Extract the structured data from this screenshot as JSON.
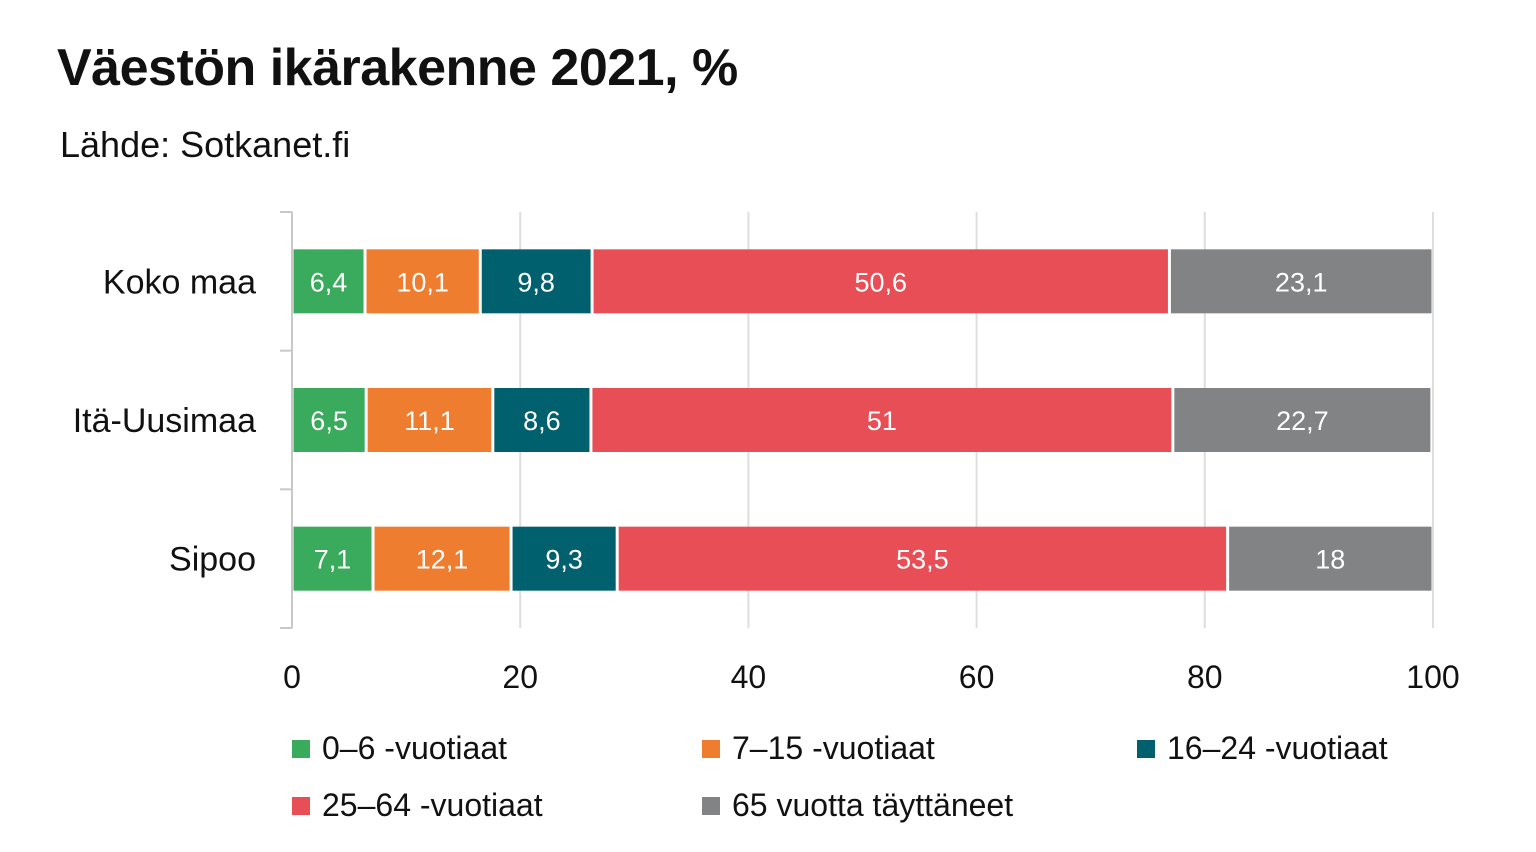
{
  "title": "Väestön ikärakenne 2021, %",
  "subtitle": "Lähde: Sotkanet.fi",
  "chart_data": {
    "type": "bar",
    "orientation": "horizontal",
    "stacked": true,
    "categories": [
      "Koko maa",
      "Itä-Uusimaa",
      "Sipoo"
    ],
    "series": [
      {
        "name": "0–6 -vuotiaat",
        "color": "#3aaa5c",
        "values": [
          6.4,
          6.5,
          7.1
        ],
        "labels": [
          "6,4",
          "6,5",
          "7,1"
        ]
      },
      {
        "name": "7–15 -vuotiaat",
        "color": "#ee7d30",
        "values": [
          10.1,
          11.1,
          12.1
        ],
        "labels": [
          "10,1",
          "11,1",
          "12,1"
        ]
      },
      {
        "name": "16–24 -vuotiaat",
        "color": "#00606e",
        "values": [
          9.8,
          8.6,
          9.3
        ],
        "labels": [
          "9,8",
          "8,6",
          "9,3"
        ]
      },
      {
        "name": "25–64 -vuotiaat",
        "color": "#e84e55",
        "values": [
          50.6,
          51,
          53.5
        ],
        "labels": [
          "50,6",
          "51",
          "53,5"
        ]
      },
      {
        "name": "65 vuotta täyttäneet",
        "color": "#818385",
        "values": [
          23.1,
          22.7,
          18
        ],
        "labels": [
          "23,1",
          "22,7",
          "18"
        ]
      }
    ],
    "xlim": [
      0,
      100
    ],
    "xticks": [
      "0",
      "20",
      "40",
      "60",
      "80",
      "100"
    ],
    "grid": "vertical",
    "legend_position": "bottom"
  }
}
